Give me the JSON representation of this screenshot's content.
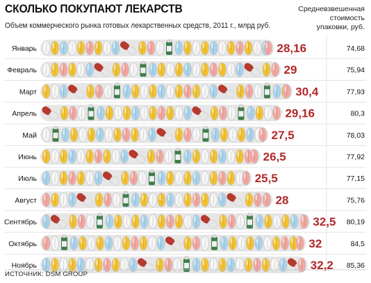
{
  "header": {
    "title": "СКОЛЬКО ПОКУПАЮТ ЛЕКАРСТВ",
    "subtitle": "Объем коммерческого рынка готовых лекарственных средств, 2011 г., млрд руб.",
    "right_column_title_lines": [
      "Средневзвешенная",
      "стоимость",
      "упаковки, руб."
    ]
  },
  "source": "ИСТОЧНИК: DSM GROUP",
  "colors": {
    "value_label": "#b0282a",
    "row_band": "#e6e6e6",
    "pill_yellow": "#f3c233",
    "pill_blue": "#a9d3ec",
    "pill_pink": "#f2a7a0",
    "pill_white": "#f5f5f5",
    "capsule_red": "#b63a2e",
    "bottle_green": "#3e7d4a"
  },
  "chart_data": {
    "type": "bar",
    "style": "pictogram",
    "categories": [
      "Январь",
      "Февраль",
      "Март",
      "Апрель",
      "Май",
      "Июнь",
      "Июль",
      "Август",
      "Сентябрь",
      "Октябрь",
      "Ноябрь"
    ],
    "series": [
      {
        "values": [
          28.16,
          29,
          30.4,
          29.16,
          27.5,
          26.5,
          25.5,
          28,
          32.5,
          32,
          32.2
        ],
        "labels": [
          "28,16",
          "29",
          "30,4",
          "29,16",
          "27,5",
          "26,5",
          "25,5",
          "28",
          "32,5",
          "32",
          "32,2"
        ]
      },
      {
        "values": [
          74.68,
          75.94,
          77.93,
          80.3,
          78.03,
          77.92,
          77.15,
          75.76,
          80.19,
          84.5,
          85.36
        ],
        "labels": [
          "74,68",
          "75,94",
          "77,93",
          "80,3",
          "78,03",
          "77,92",
          "77,15",
          "75,76",
          "80,19",
          "84,5",
          "85,36"
        ]
      }
    ]
  }
}
